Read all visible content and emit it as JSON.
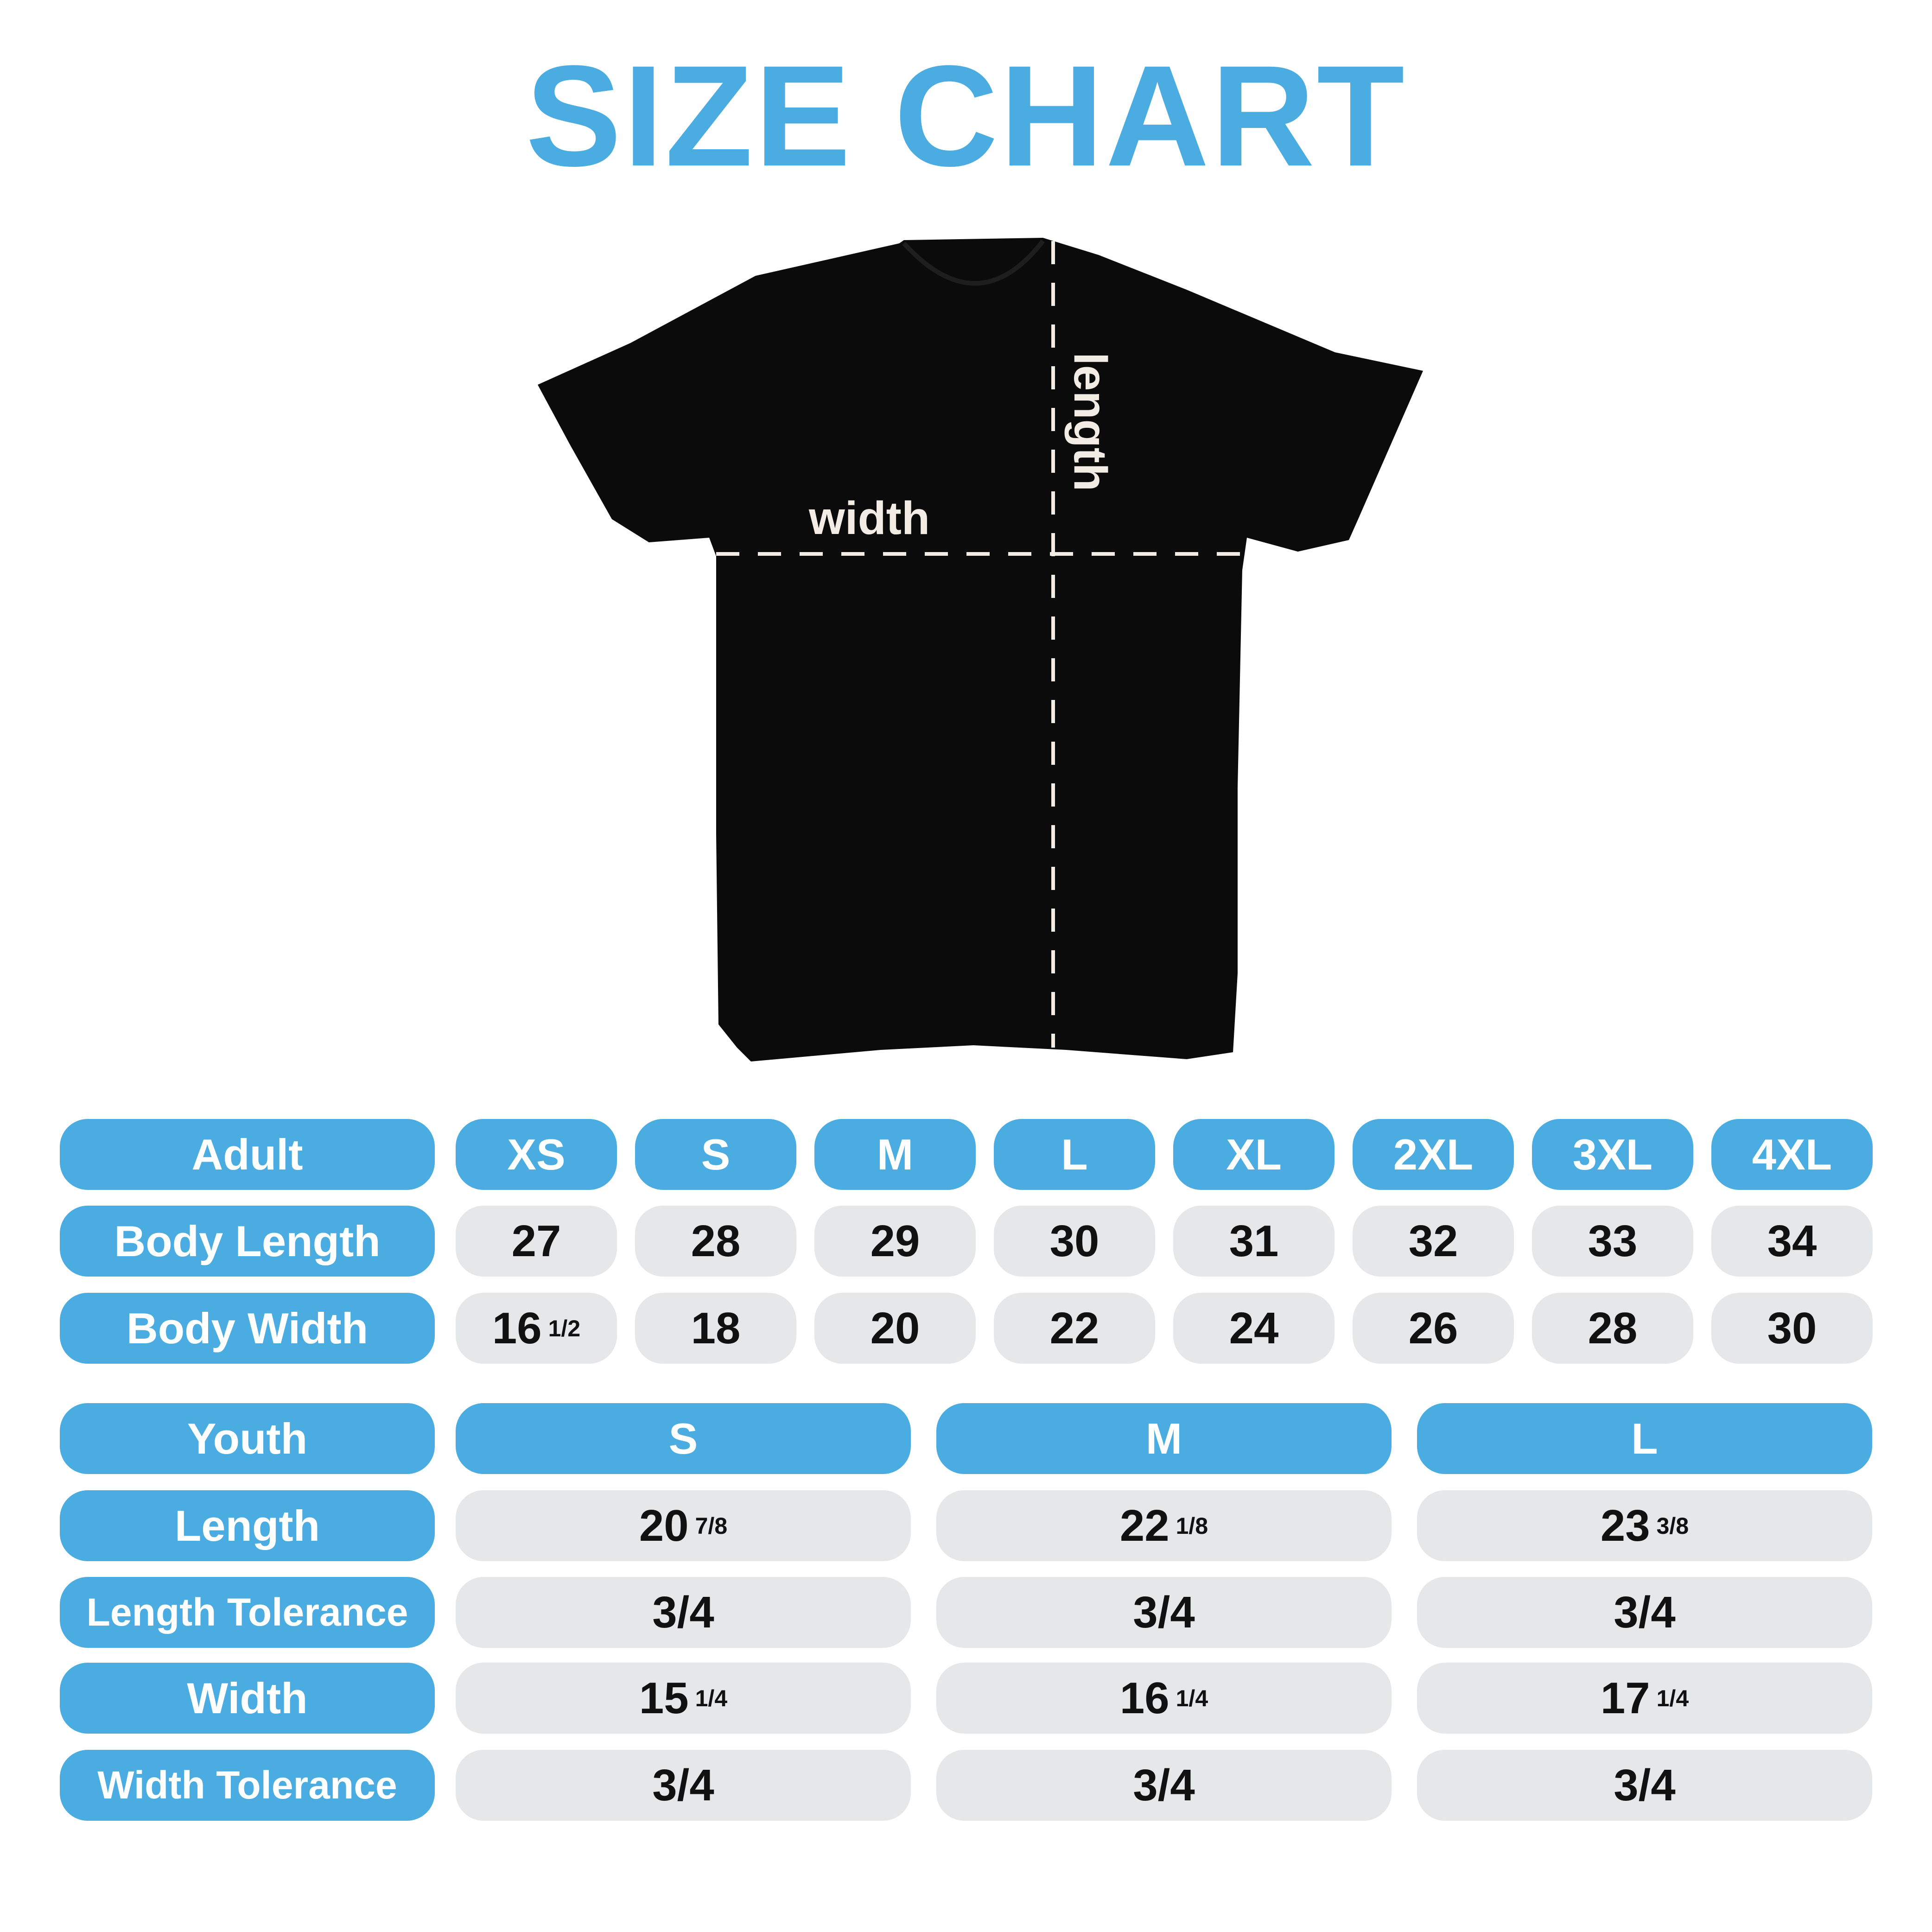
{
  "title": "SIZE CHART",
  "colors": {
    "accent": "#4aace0",
    "cell": "#e6e7e9",
    "shirt": "#0b0b0b"
  },
  "diagram": {
    "width_label": "width",
    "length_label": "length"
  },
  "adult": {
    "header_label": "Adult",
    "sizes": [
      "XS",
      "S",
      "M",
      "L",
      "XL",
      "2XL",
      "3XL",
      "4XL"
    ],
    "rows": [
      {
        "label": "Body Length",
        "values": [
          {
            "whole": "27",
            "frac": ""
          },
          {
            "whole": "28",
            "frac": ""
          },
          {
            "whole": "29",
            "frac": ""
          },
          {
            "whole": "30",
            "frac": ""
          },
          {
            "whole": "31",
            "frac": ""
          },
          {
            "whole": "32",
            "frac": ""
          },
          {
            "whole": "33",
            "frac": ""
          },
          {
            "whole": "34",
            "frac": ""
          }
        ]
      },
      {
        "label": "Body Width",
        "values": [
          {
            "whole": "16",
            "frac": "1/2"
          },
          {
            "whole": "18",
            "frac": ""
          },
          {
            "whole": "20",
            "frac": ""
          },
          {
            "whole": "22",
            "frac": ""
          },
          {
            "whole": "24",
            "frac": ""
          },
          {
            "whole": "26",
            "frac": ""
          },
          {
            "whole": "28",
            "frac": ""
          },
          {
            "whole": "30",
            "frac": ""
          }
        ]
      }
    ]
  },
  "youth": {
    "header_label": "Youth",
    "sizes": [
      "S",
      "M",
      "L"
    ],
    "rows": [
      {
        "label": "Length",
        "values": [
          {
            "whole": "20",
            "frac": "7/8"
          },
          {
            "whole": "22",
            "frac": "1/8"
          },
          {
            "whole": "23",
            "frac": "3/8"
          }
        ]
      },
      {
        "label": "Length Tolerance",
        "values": [
          {
            "whole": "3/4",
            "frac": ""
          },
          {
            "whole": "3/4",
            "frac": ""
          },
          {
            "whole": "3/4",
            "frac": ""
          }
        ]
      },
      {
        "label": "Width",
        "values": [
          {
            "whole": "15",
            "frac": "1/4"
          },
          {
            "whole": "16",
            "frac": "1/4"
          },
          {
            "whole": "17",
            "frac": "1/4"
          }
        ]
      },
      {
        "label": "Width Tolerance",
        "values": [
          {
            "whole": "3/4",
            "frac": ""
          },
          {
            "whole": "3/4",
            "frac": ""
          },
          {
            "whole": "3/4",
            "frac": ""
          }
        ]
      }
    ]
  }
}
